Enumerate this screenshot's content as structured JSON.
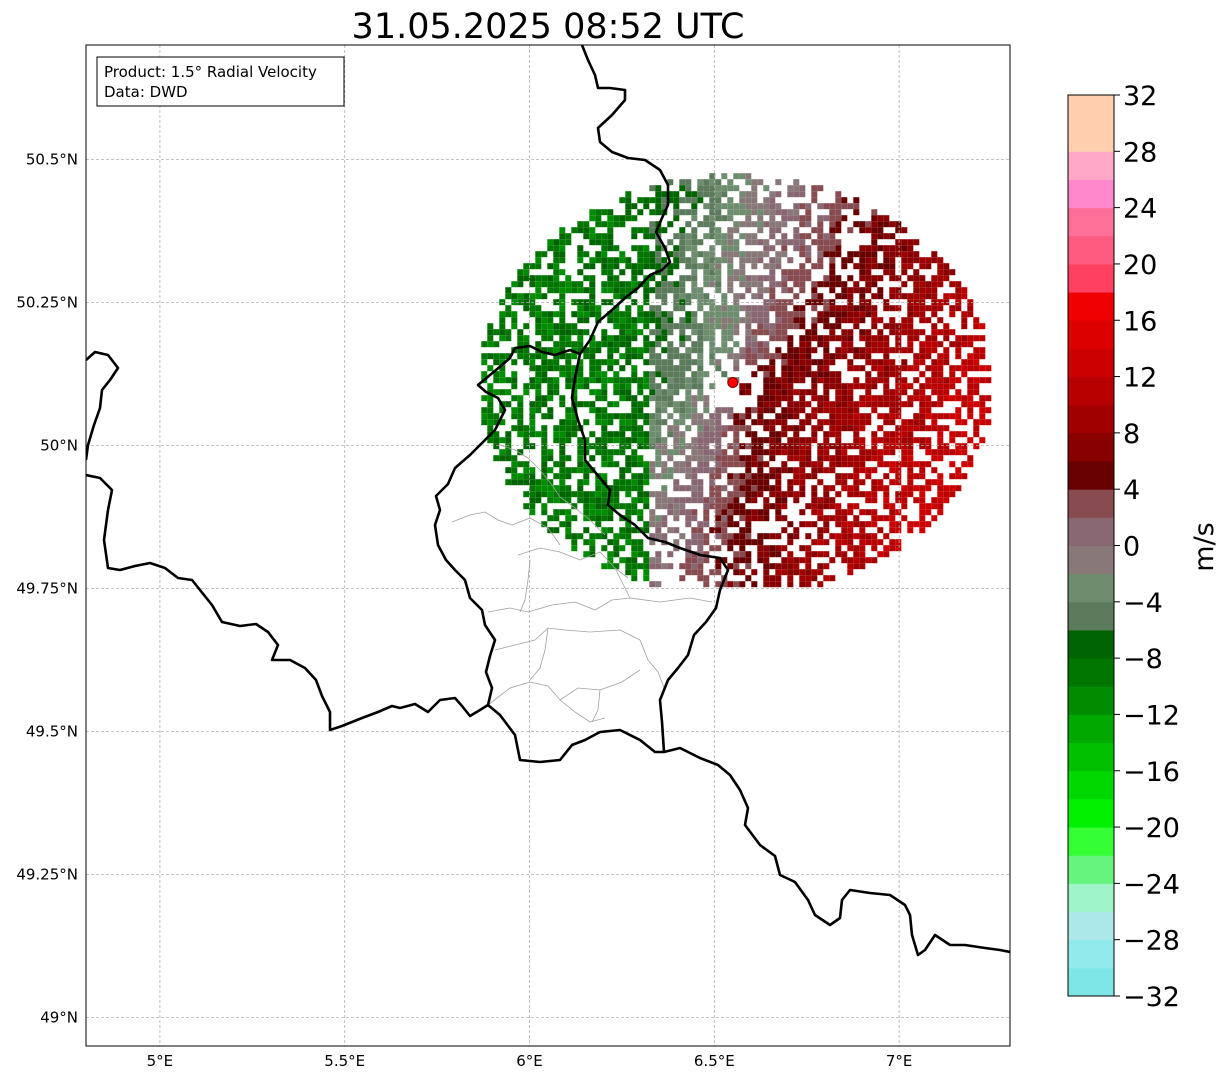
{
  "title": "31.05.2025 08:52 UTC",
  "info_box": {
    "product": "Product: 1.5° Radial Velocity",
    "data": "Data: DWD"
  },
  "map": {
    "lon_range": [
      4.8,
      7.3
    ],
    "lat_range": [
      48.95,
      50.7
    ],
    "lon_ticks": [
      {
        "value": 5.0,
        "label": "5°E"
      },
      {
        "value": 5.5,
        "label": "5.5°E"
      },
      {
        "value": 6.0,
        "label": "6°E"
      },
      {
        "value": 6.5,
        "label": "6.5°E"
      },
      {
        "value": 7.0,
        "label": "7°E"
      }
    ],
    "lat_ticks": [
      {
        "value": 49.0,
        "label": "49°N"
      },
      {
        "value": 49.25,
        "label": "49.25°N"
      },
      {
        "value": 49.5,
        "label": "49.5°N"
      },
      {
        "value": 49.75,
        "label": "49.75°N"
      },
      {
        "value": 50.0,
        "label": "50°N"
      },
      {
        "value": 50.25,
        "label": "50.25°N"
      },
      {
        "value": 50.5,
        "label": "50.5°N"
      }
    ],
    "radar_site": {
      "lon": 6.55,
      "lat": 50.11,
      "color": "#ff0000"
    },
    "radar_range_deg_lat": 0.67
  },
  "colorbar": {
    "label": "m/s",
    "vmin": -32,
    "vmax": 32,
    "ticks": [
      "32",
      "28",
      "24",
      "20",
      "16",
      "12",
      "8",
      "4",
      "0",
      "−4",
      "−8",
      "−12",
      "−16",
      "−20",
      "−24",
      "−28",
      "−32"
    ],
    "colors_bottom_to_top": [
      "#7ee6e6",
      "#92eaec",
      "#ace8ea",
      "#9ff3c8",
      "#66f47e",
      "#33ff33",
      "#00f000",
      "#00d800",
      "#00c000",
      "#00a800",
      "#008c00",
      "#007600",
      "#006400",
      "#5c7a5c",
      "#6e8c6e",
      "#887878",
      "#886672",
      "#884c50",
      "#680000",
      "#880000",
      "#a00000",
      "#b80000",
      "#cc0000",
      "#dc0000",
      "#f00000",
      "#ff4060",
      "#ff5a80",
      "#ff7098",
      "#ff88cc",
      "#ffa8c8",
      "#ffcfb0",
      "#ffcfb0"
    ]
  }
}
